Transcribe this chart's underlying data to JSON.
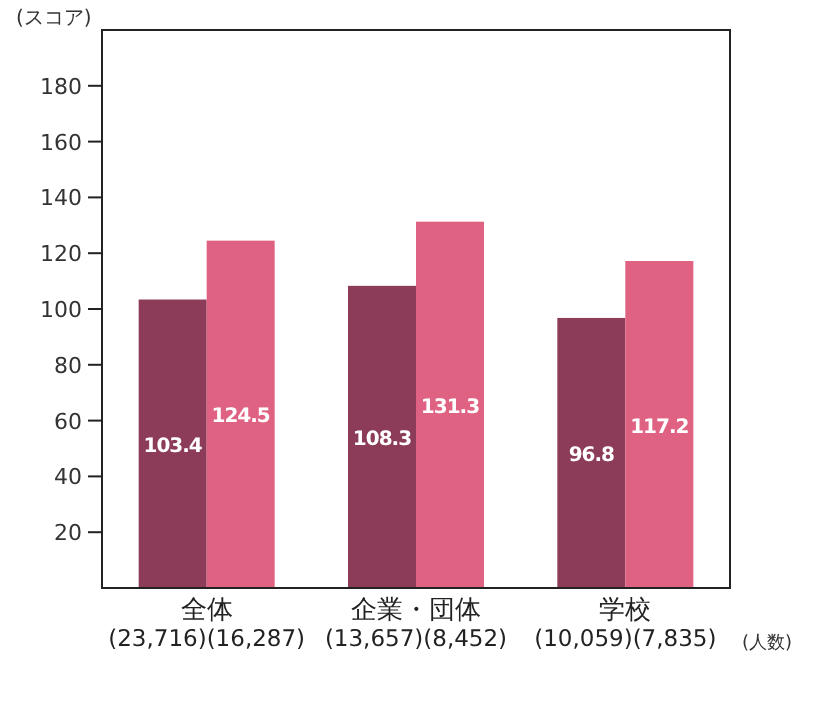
{
  "chart_data": {
    "type": "bar",
    "ylabel": "(スコア)",
    "categories": [
      "全体\n(23,716)(16,287)",
      "企業・団体\n(13,657)(8,452)",
      "学校\n(10,059)(7,835)"
    ],
    "series": [
      {
        "color": "#8c3c58",
        "values": [
          103.4,
          108.3,
          96.8
        ]
      },
      {
        "color": "#e06282",
        "values": [
          124.5,
          131.3,
          117.2
        ]
      }
    ],
    "ylim": [
      0,
      200
    ],
    "yticks": [
      20,
      40,
      60,
      80,
      100,
      120,
      140,
      160,
      180
    ],
    "data_labels": true,
    "grid": false,
    "annotations": [
      "(人数)"
    ]
  }
}
